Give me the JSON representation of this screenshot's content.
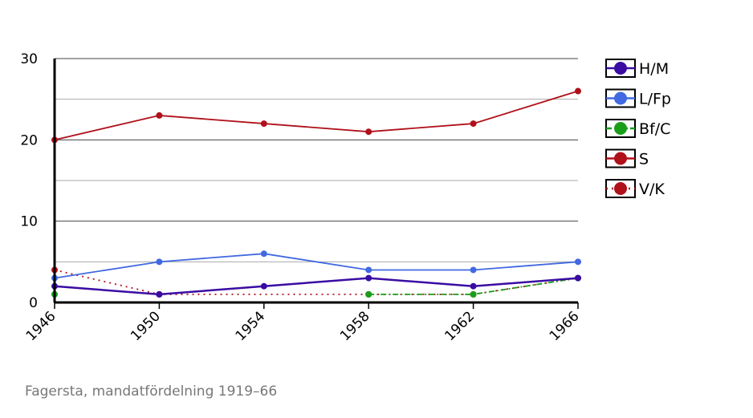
{
  "chart_data": {
    "type": "line",
    "x": [
      "1946",
      "1950",
      "1954",
      "1958",
      "1962",
      "1966"
    ],
    "ylim": [
      0,
      30
    ],
    "yticks": [
      "0",
      "10",
      "20",
      "30"
    ],
    "grid": true,
    "legend_position": "right",
    "caption": "Fagersta, mandatfördelning 1919–66",
    "series": [
      {
        "name": "H/M",
        "color": "#3a0ca3",
        "style": "solid",
        "values": [
          2,
          1,
          2,
          3,
          2,
          3
        ]
      },
      {
        "name": "L/Fp",
        "color": "#4169e1",
        "style": "solid",
        "values": [
          3,
          5,
          6,
          4,
          4,
          5
        ]
      },
      {
        "name": "Bf/C",
        "color": "#1a9e1a",
        "style": "dashdot",
        "values": [
          1,
          null,
          null,
          1,
          1,
          3
        ]
      },
      {
        "name": "S",
        "color": "#b0101a",
        "style": "solid",
        "values": [
          20,
          23,
          22,
          21,
          22,
          26
        ]
      },
      {
        "name": "V/K",
        "color": "#b0101a",
        "style": "dotted",
        "values": [
          4,
          1,
          null,
          1,
          1,
          3
        ]
      }
    ]
  }
}
